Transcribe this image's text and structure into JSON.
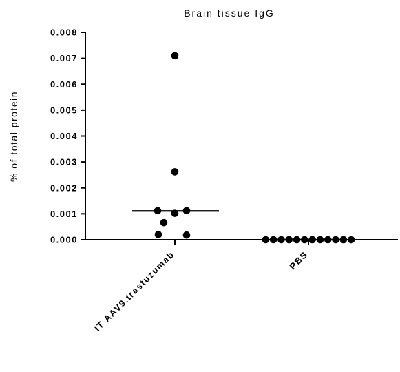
{
  "chart_data": {
    "type": "scatter",
    "title": "Brain tissue IgG",
    "ylabel": "% of total protein",
    "xlabel": "",
    "ylim": [
      0,
      0.008
    ],
    "yticks": [
      "0.000",
      "0.001",
      "0.002",
      "0.003",
      "0.004",
      "0.005",
      "0.006",
      "0.007",
      "0.008"
    ],
    "categories": [
      "IT AAV9.trastuzumab",
      "PBS"
    ],
    "grid": false,
    "legend": "none",
    "series": [
      {
        "category": "IT AAV9.trastuzumab",
        "values": [
          0.0071,
          0.00262,
          0.00112,
          0.00112,
          0.00102,
          0.00066,
          0.0002,
          0.00018
        ],
        "median": 0.00111
      },
      {
        "category": "PBS",
        "values": [
          0,
          0,
          0,
          0,
          0,
          0,
          0,
          0,
          0,
          0,
          0,
          0
        ],
        "median": 0
      }
    ],
    "marker_color": "#000000"
  }
}
